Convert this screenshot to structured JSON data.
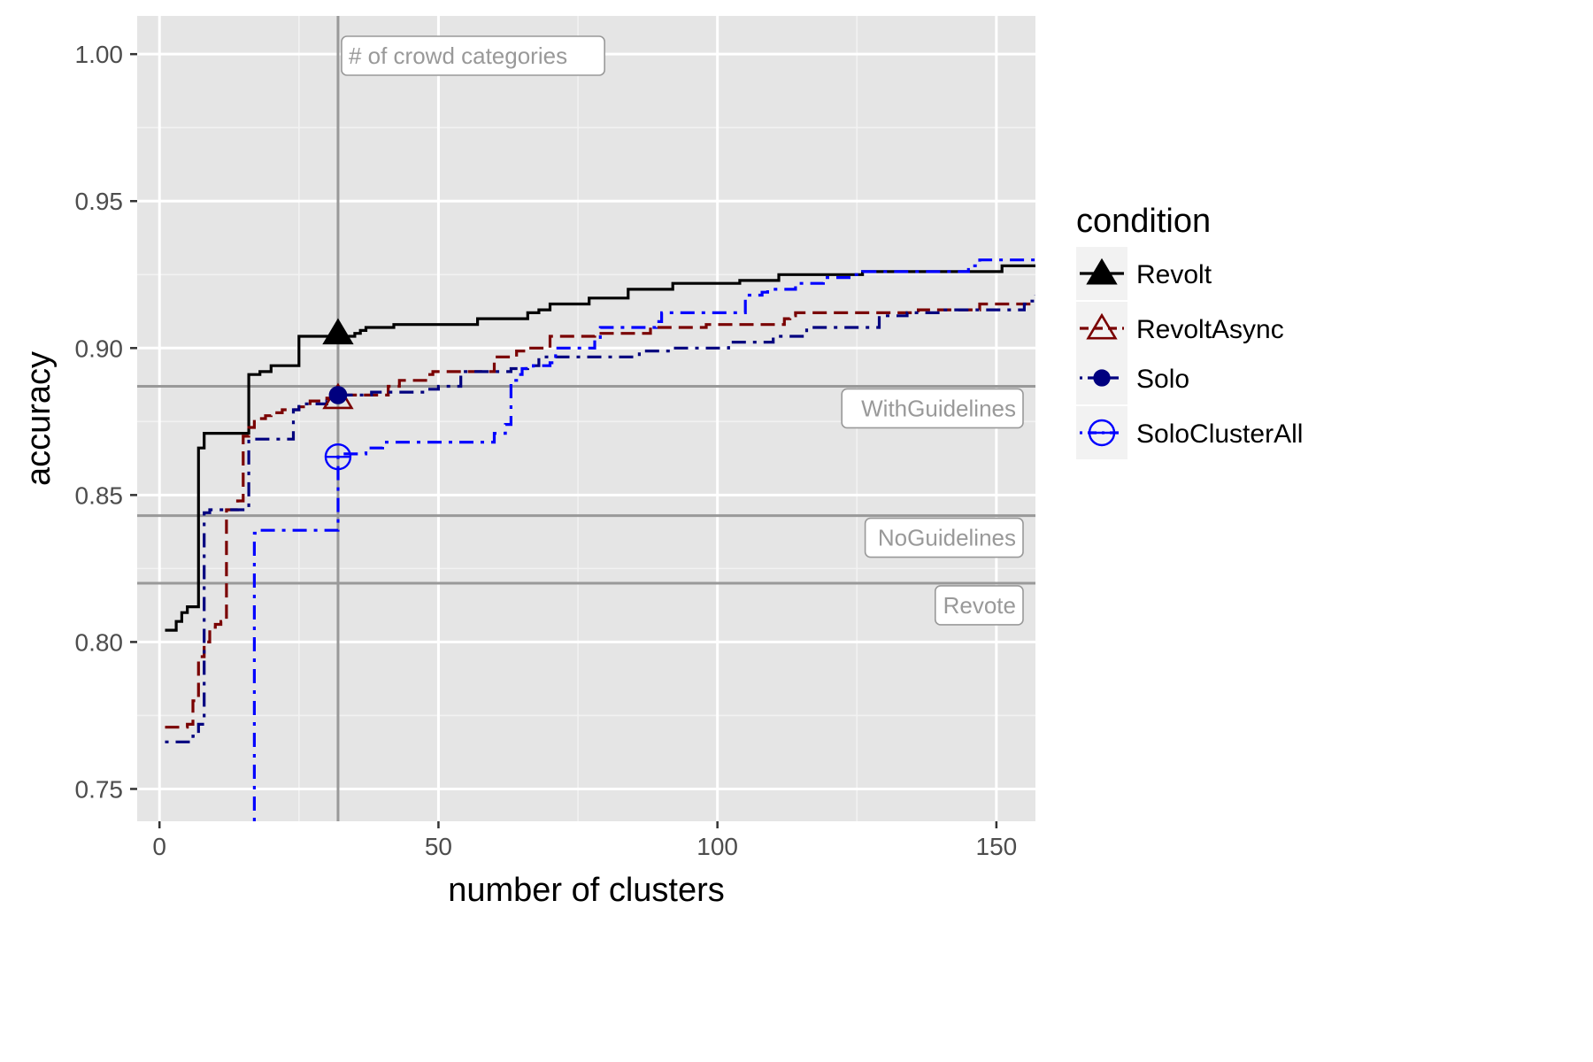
{
  "chart_data": {
    "type": "line",
    "title": "",
    "xlabel": "number of clusters",
    "ylabel": "accuracy",
    "xlim": [
      -4,
      157
    ],
    "ylim": [
      0.739,
      1.013
    ],
    "x_ticks": [
      0,
      50,
      100,
      150
    ],
    "x_tick_labels": [
      "0",
      "50",
      "100",
      "150"
    ],
    "y_ticks": [
      0.75,
      0.8,
      0.85,
      0.9,
      0.95,
      1.0
    ],
    "y_tick_labels": [
      "0.75",
      "0.80",
      "0.85",
      "0.90",
      "0.95",
      "1.00"
    ],
    "grid": true,
    "legend": {
      "title": "condition",
      "position": "right"
    },
    "series": [
      {
        "name": "Revolt",
        "color": "#000000",
        "linestyle": "solid",
        "marker": "filled-triangle",
        "marker_point": [
          32,
          0.905
        ],
        "points": [
          [
            1,
            0.804
          ],
          [
            2,
            0.804
          ],
          [
            3,
            0.807
          ],
          [
            4,
            0.81
          ],
          [
            5,
            0.812
          ],
          [
            6,
            0.812
          ],
          [
            7,
            0.866
          ],
          [
            8,
            0.871
          ],
          [
            9,
            0.871
          ],
          [
            10,
            0.871
          ],
          [
            11,
            0.871
          ],
          [
            12,
            0.871
          ],
          [
            13,
            0.871
          ],
          [
            14,
            0.871
          ],
          [
            15,
            0.871
          ],
          [
            16,
            0.891
          ],
          [
            17,
            0.891
          ],
          [
            18,
            0.892
          ],
          [
            19,
            0.892
          ],
          [
            20,
            0.894
          ],
          [
            21,
            0.894
          ],
          [
            22,
            0.894
          ],
          [
            23,
            0.894
          ],
          [
            24,
            0.894
          ],
          [
            25,
            0.904
          ],
          [
            26,
            0.904
          ],
          [
            27,
            0.904
          ],
          [
            28,
            0.904
          ],
          [
            29,
            0.904
          ],
          [
            30,
            0.904
          ],
          [
            31,
            0.904
          ],
          [
            32,
            0.904
          ],
          [
            33,
            0.904
          ],
          [
            34,
            0.904
          ],
          [
            35,
            0.905
          ],
          [
            36,
            0.906
          ],
          [
            37,
            0.907
          ],
          [
            40,
            0.907
          ],
          [
            42,
            0.908
          ],
          [
            55,
            0.908
          ],
          [
            57,
            0.91
          ],
          [
            65,
            0.91
          ],
          [
            66,
            0.912
          ],
          [
            68,
            0.913
          ],
          [
            70,
            0.915
          ],
          [
            76,
            0.915
          ],
          [
            77,
            0.917
          ],
          [
            83,
            0.917
          ],
          [
            84,
            0.92
          ],
          [
            91,
            0.92
          ],
          [
            92,
            0.922
          ],
          [
            103,
            0.922
          ],
          [
            104,
            0.923
          ],
          [
            110,
            0.923
          ],
          [
            111,
            0.925
          ],
          [
            125,
            0.925
          ],
          [
            126,
            0.926
          ],
          [
            150,
            0.926
          ],
          [
            151,
            0.928
          ],
          [
            157,
            0.928
          ]
        ]
      },
      {
        "name": "RevoltAsync",
        "color": "#7a0000",
        "linestyle": "dashed",
        "marker": "open-triangle",
        "marker_point": [
          32,
          0.883
        ],
        "points": [
          [
            1,
            0.771
          ],
          [
            4,
            0.771
          ],
          [
            5,
            0.772
          ],
          [
            6,
            0.78
          ],
          [
            7,
            0.795
          ],
          [
            8,
            0.8
          ],
          [
            9,
            0.805
          ],
          [
            10,
            0.806
          ],
          [
            11,
            0.807
          ],
          [
            12,
            0.845
          ],
          [
            13,
            0.845
          ],
          [
            14,
            0.848
          ],
          [
            15,
            0.87
          ],
          [
            16,
            0.873
          ],
          [
            17,
            0.876
          ],
          [
            18,
            0.876
          ],
          [
            19,
            0.877
          ],
          [
            20,
            0.878
          ],
          [
            21,
            0.878
          ],
          [
            22,
            0.879
          ],
          [
            23,
            0.879
          ],
          [
            25,
            0.88
          ],
          [
            27,
            0.882
          ],
          [
            30,
            0.883
          ],
          [
            32,
            0.884
          ],
          [
            40,
            0.884
          ],
          [
            41,
            0.887
          ],
          [
            43,
            0.889
          ],
          [
            47,
            0.889
          ],
          [
            48,
            0.891
          ],
          [
            49,
            0.892
          ],
          [
            57,
            0.892
          ],
          [
            60,
            0.897
          ],
          [
            63,
            0.897
          ],
          [
            64,
            0.899
          ],
          [
            66,
            0.9
          ],
          [
            69,
            0.9
          ],
          [
            70,
            0.904
          ],
          [
            76,
            0.904
          ],
          [
            78,
            0.905
          ],
          [
            86,
            0.905
          ],
          [
            88,
            0.907
          ],
          [
            96,
            0.907
          ],
          [
            98,
            0.908
          ],
          [
            108,
            0.908
          ],
          [
            112,
            0.91
          ],
          [
            113,
            0.911
          ],
          [
            114,
            0.912
          ],
          [
            130,
            0.912
          ],
          [
            136,
            0.913
          ],
          [
            146,
            0.913
          ],
          [
            147,
            0.915
          ],
          [
            157,
            0.915
          ]
        ]
      },
      {
        "name": "Solo",
        "color": "#00007f",
        "linestyle": "dashdot",
        "marker": "filled-circle",
        "marker_point": [
          32,
          0.884
        ],
        "points": [
          [
            1,
            0.766
          ],
          [
            5,
            0.766
          ],
          [
            6,
            0.768
          ],
          [
            7,
            0.772
          ],
          [
            8,
            0.844
          ],
          [
            9,
            0.845
          ],
          [
            10,
            0.845
          ],
          [
            11,
            0.845
          ],
          [
            12,
            0.845
          ],
          [
            13,
            0.845
          ],
          [
            14,
            0.845
          ],
          [
            15,
            0.845
          ],
          [
            16,
            0.869
          ],
          [
            17,
            0.869
          ],
          [
            18,
            0.869
          ],
          [
            22,
            0.869
          ],
          [
            23,
            0.869
          ],
          [
            24,
            0.879
          ],
          [
            25,
            0.881
          ],
          [
            29,
            0.881
          ],
          [
            30,
            0.882
          ],
          [
            32,
            0.884
          ],
          [
            37,
            0.884
          ],
          [
            38,
            0.885
          ],
          [
            45,
            0.885
          ],
          [
            48,
            0.886
          ],
          [
            50,
            0.887
          ],
          [
            52,
            0.887
          ],
          [
            54,
            0.892
          ],
          [
            62,
            0.892
          ],
          [
            63,
            0.893
          ],
          [
            66,
            0.894
          ],
          [
            68,
            0.897
          ],
          [
            85,
            0.897
          ],
          [
            86,
            0.899
          ],
          [
            91,
            0.899
          ],
          [
            92,
            0.9
          ],
          [
            100,
            0.9
          ],
          [
            102,
            0.902
          ],
          [
            109,
            0.902
          ],
          [
            110,
            0.904
          ],
          [
            115,
            0.904
          ],
          [
            116,
            0.907
          ],
          [
            128,
            0.907
          ],
          [
            129,
            0.911
          ],
          [
            133,
            0.911
          ],
          [
            134,
            0.912
          ],
          [
            140,
            0.913
          ],
          [
            154,
            0.913
          ],
          [
            155,
            0.915
          ],
          [
            156,
            0.916
          ],
          [
            157,
            0.918
          ]
        ]
      },
      {
        "name": "SoloClusterAll",
        "color": "#0000ff",
        "linestyle": "dashdot",
        "marker": "open-circle-minus",
        "marker_point": [
          32,
          0.863
        ],
        "points": [
          [
            17,
            0.739
          ],
          [
            17,
            0.837
          ],
          [
            18,
            0.838
          ],
          [
            31,
            0.838
          ],
          [
            32,
            0.863
          ],
          [
            33,
            0.864
          ],
          [
            34,
            0.864
          ],
          [
            35,
            0.864
          ],
          [
            37,
            0.866
          ],
          [
            40,
            0.868
          ],
          [
            58,
            0.868
          ],
          [
            60,
            0.871
          ],
          [
            62,
            0.874
          ],
          [
            63,
            0.889
          ],
          [
            64,
            0.891
          ],
          [
            65,
            0.893
          ],
          [
            67,
            0.894
          ],
          [
            70,
            0.895
          ],
          [
            71,
            0.9
          ],
          [
            73,
            0.9
          ],
          [
            77,
            0.9
          ],
          [
            78,
            0.903
          ],
          [
            79,
            0.907
          ],
          [
            84,
            0.907
          ],
          [
            85,
            0.907
          ],
          [
            89,
            0.909
          ],
          [
            90,
            0.912
          ],
          [
            101,
            0.912
          ],
          [
            104,
            0.912
          ],
          [
            105,
            0.918
          ],
          [
            108,
            0.919
          ],
          [
            109,
            0.92
          ],
          [
            113,
            0.92
          ],
          [
            114,
            0.922
          ],
          [
            117,
            0.922
          ],
          [
            119,
            0.924
          ],
          [
            123,
            0.924
          ],
          [
            124,
            0.925
          ],
          [
            126,
            0.926
          ],
          [
            143,
            0.926
          ],
          [
            145,
            0.928
          ],
          [
            147,
            0.93
          ],
          [
            157,
            0.93
          ]
        ]
      }
    ],
    "reference_lines": [
      {
        "orientation": "vertical",
        "x": 32,
        "label": "# of crowd categories"
      },
      {
        "orientation": "horizontal",
        "y": 0.887,
        "label": "WithGuidelines"
      },
      {
        "orientation": "horizontal",
        "y": 0.843,
        "label": "NoGuidelines"
      },
      {
        "orientation": "horizontal",
        "y": 0.82,
        "label": "Revote"
      }
    ]
  }
}
